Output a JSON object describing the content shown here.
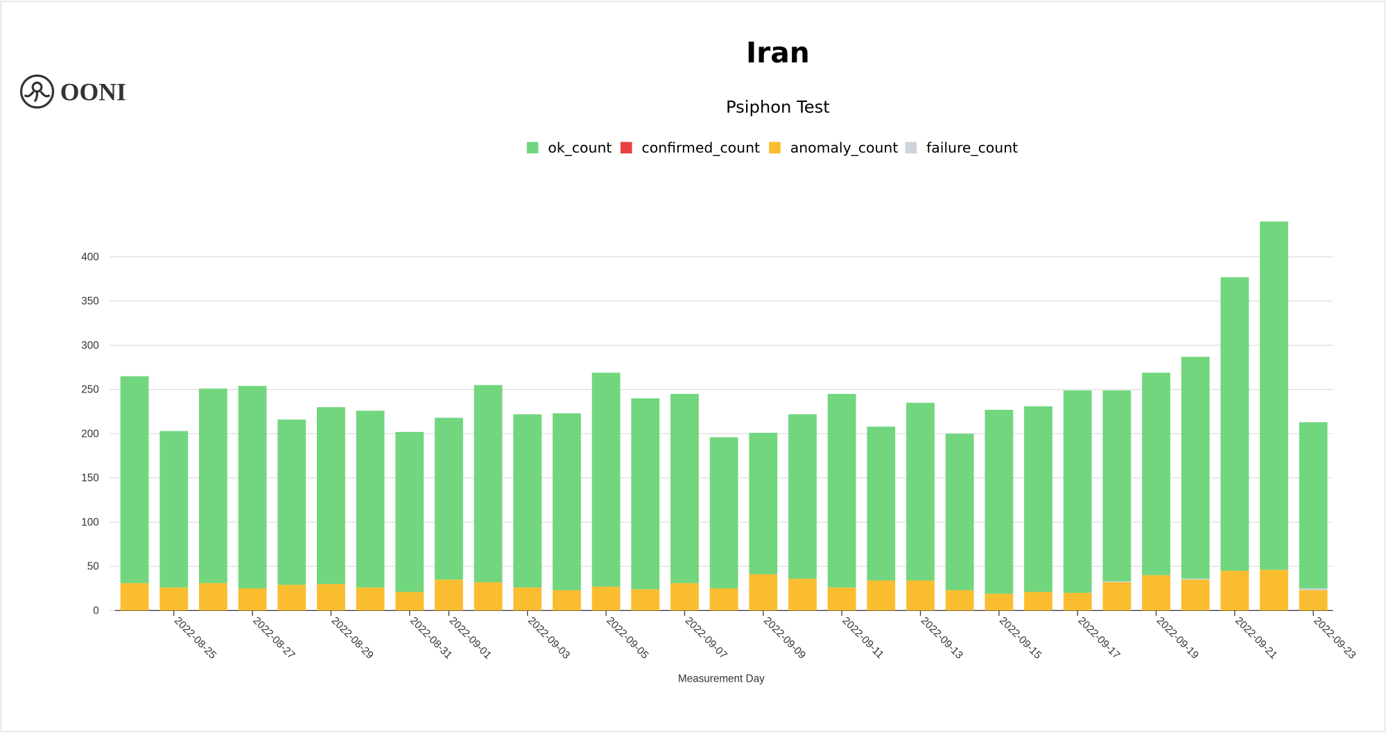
{
  "logo": "OONI",
  "chart_data": {
    "type": "stacked_bar",
    "title": "Iran",
    "subtitle": "Psiphon Test",
    "x_label": "Measurement Day",
    "categories": [
      null,
      "2022-08-25",
      null,
      "2022-08-27",
      null,
      "2022-08-29",
      null,
      "2022-08-31",
      "2022-09-01",
      null,
      "2022-09-03",
      null,
      "2022-09-05",
      null,
      "2022-09-07",
      null,
      "2022-09-09",
      null,
      "2022-09-11",
      null,
      "2022-09-13",
      null,
      "2022-09-15",
      null,
      "2022-09-17",
      null,
      "2022-09-19",
      null,
      "2022-09-21",
      null,
      "2022-09-23"
    ],
    "series": [
      {
        "name": "ok_count",
        "color": "#72d67f",
        "values": [
          234,
          177,
          220,
          229,
          187,
          200,
          200,
          181,
          183,
          223,
          196,
          200,
          242,
          216,
          214,
          171,
          160,
          186,
          219,
          174,
          201,
          177,
          208,
          210,
          229,
          216,
          229,
          251,
          332,
          394,
          188
        ]
      },
      {
        "name": "confirmed_count",
        "color": "#e8403d",
        "values": [
          0,
          0,
          0,
          0,
          0,
          0,
          0,
          0,
          0,
          0,
          0,
          0,
          0,
          0,
          0,
          0,
          0,
          0,
          0,
          0,
          0,
          0,
          0,
          0,
          0,
          0,
          0,
          0,
          0,
          0,
          0
        ]
      },
      {
        "name": "anomaly_count",
        "color": "#fbbd30",
        "values": [
          31,
          26,
          31,
          25,
          29,
          30,
          26,
          21,
          35,
          32,
          26,
          23,
          27,
          24,
          31,
          25,
          41,
          36,
          26,
          34,
          34,
          23,
          19,
          21,
          20,
          32,
          40,
          35,
          45,
          46,
          23
        ]
      },
      {
        "name": "failure_count",
        "color": "#ced4da",
        "values": [
          0,
          0,
          0,
          0,
          0,
          0,
          0,
          0,
          0,
          0,
          0,
          0,
          0,
          0,
          0,
          0,
          0,
          0,
          0,
          0,
          0,
          0,
          0,
          0,
          0,
          1,
          0,
          1,
          0,
          0,
          2
        ]
      }
    ],
    "stack_order": [
      "anomaly_count",
      "failure_count",
      "confirmed_count",
      "ok_count"
    ],
    "ylim": [
      0,
      450
    ],
    "yticks": [
      0,
      50,
      100,
      150,
      200,
      250,
      300,
      350,
      400
    ],
    "grid": true
  }
}
